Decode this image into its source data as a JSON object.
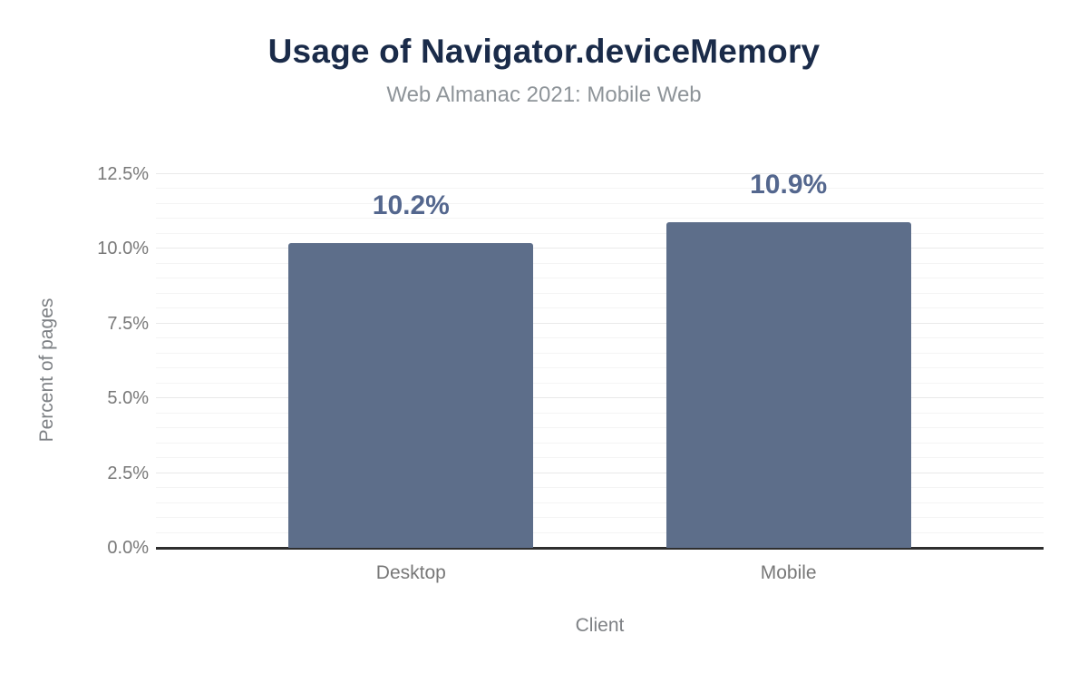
{
  "chart_data": {
    "type": "bar",
    "title": "Usage of Navigator.deviceMemory",
    "subtitle": "Web Almanac 2021: Mobile Web",
    "xlabel": "Client",
    "ylabel": "Percent of pages",
    "categories": [
      "Desktop",
      "Mobile"
    ],
    "values": [
      10.2,
      10.9
    ],
    "value_labels": [
      "10.2%",
      "10.9%"
    ],
    "ylim": [
      0,
      12.5
    ],
    "ytick_step": 2.5,
    "yticks": [
      0,
      2.5,
      5,
      7.5,
      10,
      12.5
    ],
    "ytick_labels": [
      "0.0%",
      "2.5%",
      "5.0%",
      "7.5%",
      "10.0%",
      "12.5%"
    ],
    "minor_grid_step": 0.5,
    "grid": "on",
    "legend": "none",
    "colors": {
      "bar": "#5d6e8a",
      "value_label": "#54678e",
      "title": "#1a2b49",
      "subtitle": "#8e9499",
      "tick_label": "#787878",
      "axis_title": "#7d8084",
      "minor_gridline": "#f4f4f4",
      "major_gridline": "#e9e9e9",
      "axis_line": "#2e2e2e",
      "background": "#ffffff"
    }
  }
}
